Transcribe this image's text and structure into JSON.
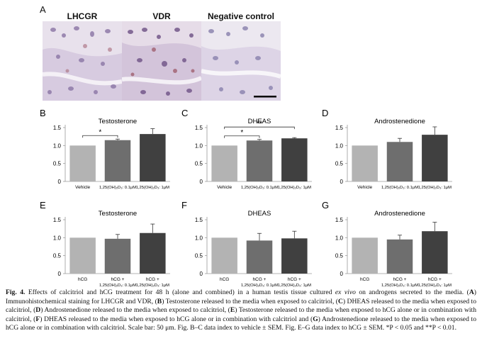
{
  "panel_a": {
    "letter": "A",
    "images": [
      {
        "label": "LHCGR"
      },
      {
        "label": "VDR"
      },
      {
        "label": "Negative control"
      }
    ]
  },
  "chart_data": [
    {
      "letter": "B",
      "type": "bar",
      "title": "Testosterone",
      "categories": [
        "Vehicle",
        "1,25(OH)₂D₃: 0.1μM",
        "1,25(OH)₂D₃: 1μM"
      ],
      "values": [
        1.0,
        1.15,
        1.32
      ],
      "errors": [
        0,
        0.03,
        0.15
      ],
      "ylim": [
        0,
        1.5
      ],
      "yticks": [
        "0",
        "0.5",
        "1.0",
        "1.5"
      ],
      "significance": [
        {
          "from": 0,
          "to": 1,
          "label": "*"
        }
      ]
    },
    {
      "letter": "C",
      "type": "bar",
      "title": "DHEAS",
      "categories": [
        "Vehicle",
        "1,25(OH)₂D₃: 0.1μM",
        "1,25(OH)₂D₃: 1μM"
      ],
      "values": [
        1.0,
        1.14,
        1.2
      ],
      "errors": [
        0,
        0.03,
        0.02
      ],
      "ylim": [
        0,
        1.5
      ],
      "yticks": [
        "0",
        "0.5",
        "1.0",
        "1.5"
      ],
      "significance": [
        {
          "from": 0,
          "to": 1,
          "label": "*"
        },
        {
          "from": 0,
          "to": 2,
          "label": "**"
        }
      ]
    },
    {
      "letter": "D",
      "type": "bar",
      "title": "Androstenedione",
      "categories": [
        "Vehicle",
        "1,25(OH)₂D₃: 0.1μM",
        "1,25(OH)₂D₃: 1μM"
      ],
      "values": [
        1.0,
        1.1,
        1.3
      ],
      "errors": [
        0,
        0.1,
        0.22
      ],
      "ylim": [
        0,
        1.5
      ],
      "yticks": [
        "0",
        "0.5",
        "1.0",
        "1.5"
      ],
      "significance": []
    },
    {
      "letter": "E",
      "type": "bar",
      "title": "Testosterone",
      "categories": [
        "hCG",
        "hCG + 1,25(OH)₂D₃: 0.1μM",
        "hCG + 1,25(OH)₂D₃: 1μM"
      ],
      "values": [
        1.0,
        0.97,
        1.13
      ],
      "errors": [
        0,
        0.12,
        0.25
      ],
      "ylim": [
        0,
        1.5
      ],
      "yticks": [
        "0",
        "0.5",
        "1.0",
        "1.5"
      ],
      "significance": []
    },
    {
      "letter": "F",
      "type": "bar",
      "title": "DHEAS",
      "categories": [
        "hCG",
        "hCG + 1,25(OH)₂D₃: 0.1μM",
        "hCG + 1,25(OH)₂D₃: 1μM"
      ],
      "values": [
        1.0,
        0.92,
        0.98
      ],
      "errors": [
        0,
        0.2,
        0.2
      ],
      "ylim": [
        0,
        1.5
      ],
      "yticks": [
        "0",
        "0.5",
        "1.0",
        "1.5"
      ],
      "significance": []
    },
    {
      "letter": "G",
      "type": "bar",
      "title": "Androstenedione",
      "categories": [
        "hCG",
        "hCG + 1,25(OH)₂D₃: 0.1μM",
        "hCG + 1,25(OH)₂D₃: 1μM"
      ],
      "values": [
        1.0,
        0.95,
        1.18
      ],
      "errors": [
        0,
        0.12,
        0.25
      ],
      "ylim": [
        0,
        1.5
      ],
      "yticks": [
        "0",
        "0.5",
        "1.0",
        "1.5"
      ],
      "significance": []
    }
  ],
  "colors": {
    "bar1": "#b3b3b3",
    "bar2": "#6e6e6e",
    "bar3": "#404040",
    "axis": "#9a9a9a"
  },
  "caption": {
    "fig_label": "Fig. 4.",
    "t1": "Effects of calcitriol and hCG treatment for 48 h (alone and combined) in a human testis tissue cultured ",
    "exvivo": "ex vivo",
    "t2": " on androgens secreted to the media. (",
    "A": "A",
    "t3": ") Immunohistochemical staining for LHCGR and VDR, (",
    "B": "B",
    "t4": ") Testosterone released to the media when exposed to calcitriol, (",
    "C": "C",
    "t5": ") DHEAS released to the media when exposed to calcitriol, (",
    "D": "D",
    "t6": ") Androstenedione released to the media when exposed to calcitriol, (",
    "E": "E",
    "t7": ") Testosterone released to the media when exposed to hCG alone or in combination with calcitriol, (",
    "F": "F",
    "t8": ") DHEAS released to the media when exposed to hCG alone or in combination with calcitriol and (",
    "G": "G",
    "t9": ") Androstenedione released to the media when exposed to hCG alone or in combination with calcitriol. Scale bar: 50 μm. Fig. B–C data index to vehicle ± SEM. Fig. E–G data index to hCG ± SEM. *P < 0.05 and **P < 0.01."
  }
}
